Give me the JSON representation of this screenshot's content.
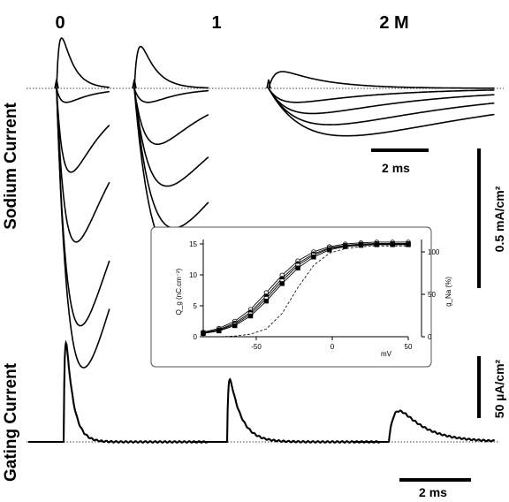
{
  "panel_titles": [
    "0",
    "1",
    "2 M"
  ],
  "side_labels": {
    "top": "Sodium Current",
    "bottom": "Gating Current"
  },
  "scale_bars": {
    "time_top": "2 ms",
    "time_bottom": "2 ms",
    "current_sodium": "0.5 mA/cm²",
    "current_gating": "50 µA/cm²"
  },
  "inset": {
    "left_axis_label": "Q_g (nC.cm⁻²)",
    "right_axis_label": "g_Na (%)",
    "xlabel": "mV",
    "x_ticks": [
      "-50",
      "0",
      "50"
    ],
    "y_left_ticks": [
      "0",
      "5",
      "10",
      "15"
    ],
    "y_right_ticks": [
      "0",
      "50",
      "100"
    ]
  },
  "chart_data": [
    {
      "type": "line",
      "title": "",
      "xlabel": "mV",
      "ylabel": "Q_g (nC.cm⁻²)",
      "y2label": "g_Na (%)",
      "xlim": [
        -80,
        50
      ],
      "ylim": [
        0,
        15
      ],
      "y2lim": [
        0,
        115
      ],
      "grid": false,
      "x": [
        -80,
        -70,
        -60,
        -50,
        -40,
        -30,
        -20,
        -10,
        0,
        10,
        20,
        30,
        40,
        50
      ],
      "series": [
        {
          "values": [
            0.7,
            1.3,
            2.4,
            4.2,
            6.8,
            9.5,
            11.7,
            13.1,
            13.9,
            14.3,
            14.5,
            14.6,
            14.6,
            14.6
          ],
          "marker": "open-circle"
        },
        {
          "values": [
            0.6,
            1.1,
            2.1,
            3.8,
            6.3,
            9.0,
            11.3,
            12.8,
            13.7,
            14.1,
            14.3,
            14.4,
            14.4,
            14.4
          ],
          "marker": "filled-circle"
        },
        {
          "values": [
            0.6,
            1.0,
            1.9,
            3.5,
            5.9,
            8.6,
            11.0,
            12.6,
            13.6,
            14.0,
            14.2,
            14.3,
            14.3,
            14.3
          ],
          "marker": "open-square"
        },
        {
          "values": [
            0.5,
            0.9,
            1.7,
            3.2,
            5.5,
            8.2,
            10.6,
            12.3,
            13.4,
            13.9,
            14.1,
            14.2,
            14.2,
            14.2
          ],
          "marker": "filled-square"
        },
        {
          "values": [
            0.0,
            0.0,
            0.1,
            0.4,
            1.2,
            3.6,
            7.6,
            11.0,
            12.9,
            13.6,
            13.9,
            14.0,
            14.0,
            14.0
          ],
          "style": "dashed",
          "axis": "g_Na"
        }
      ]
    },
    {
      "type": "line",
      "title": "Sodium Current",
      "panels": [
        "0",
        "1",
        "2 M"
      ],
      "time_unit": "ms",
      "current_unit": "mA/cm²",
      "peak_currents": [
        [
          0.18,
          -0.05,
          -0.3,
          -0.55,
          -0.85,
          -1.0
        ],
        [
          0.15,
          -0.05,
          -0.2,
          -0.35,
          -0.5,
          -0.6
        ],
        [
          0.06,
          -0.05,
          -0.09,
          -0.13,
          -0.17
        ]
      ]
    },
    {
      "type": "line",
      "title": "Gating Current",
      "panels": [
        "0",
        "1",
        "2 M"
      ],
      "time_unit": "ms",
      "current_unit": "µA/cm²",
      "peak_currents": [
        80,
        50,
        25
      ]
    }
  ]
}
